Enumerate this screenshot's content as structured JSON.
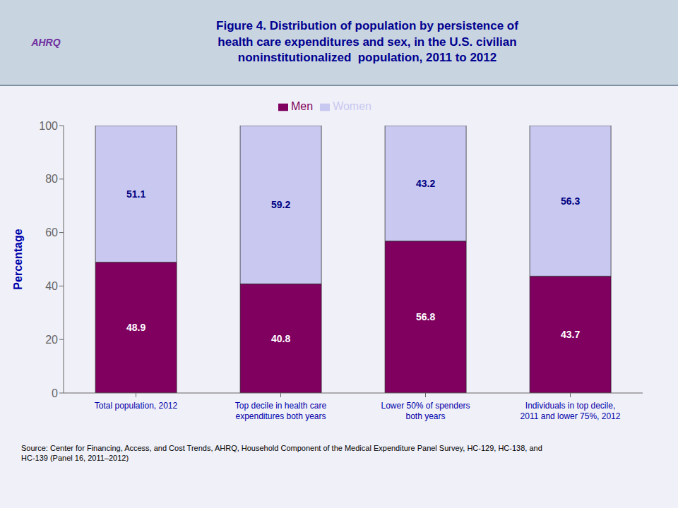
{
  "chart_data": {
    "type": "bar",
    "title": "Figure 4. Distribution of population by persistence of\nhealth care expenditures and sex, in the U.S. civilian\nnoninstitutionalized  population, 2011 to 2012",
    "categories": [
      "Total population, 2012",
      "Top decile in health care\nexpenditures both years",
      "Lower 50% of spenders\nboth years",
      "Individuals in top decile,\n2011 and lower 75%, 2012"
    ],
    "series": [
      {
        "name": "Men",
        "color": "#800060",
        "values": [
          48.9,
          40.8,
          56.8,
          43.7
        ]
      },
      {
        "name": "Women",
        "color": "#c8c8f0",
        "values": [
          51.1,
          59.2,
          43.2,
          56.3
        ]
      }
    ],
    "ylabel": "Percentage",
    "ylim": [
      0,
      100
    ],
    "yticks": [
      0,
      20,
      40,
      60,
      80,
      100
    ],
    "stacked": true,
    "data_labels": true,
    "grid": false,
    "legend": "top",
    "annotations": [
      "AHRQ",
      "Source: Center for Financing, Access, and Cost Trends, AHRQ, Household Component of the Medical Expenditure Panel Survey, HC-129, HC-138, and\nHC-139 (Panel 16, 2011–2012)"
    ]
  }
}
